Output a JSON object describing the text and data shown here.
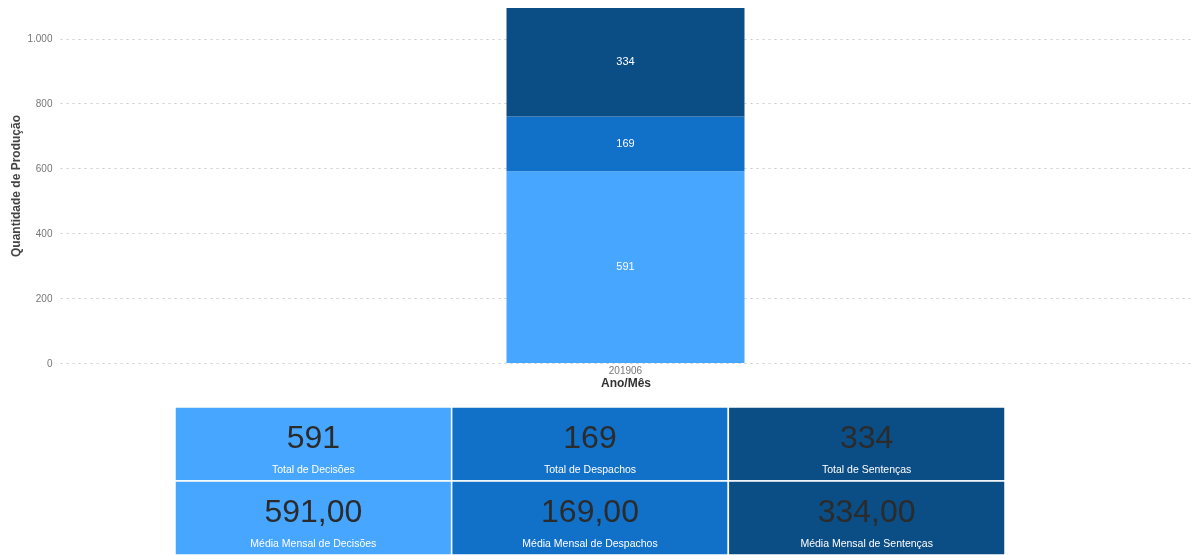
{
  "chart_data": [
    {
      "type": "bar",
      "stacked": true,
      "categories": [
        "201906"
      ],
      "xlabel": "Ano/Mês",
      "ylabel": "Quantidade de Produção",
      "ylim": [
        0,
        1094
      ],
      "yticks": [
        0,
        200,
        400,
        600,
        800,
        {
          "value": 1000,
          "label": "1.000"
        }
      ],
      "grid": "y",
      "data_labels": true,
      "series": [
        {
          "color": "#47a6ff",
          "values": [
            591
          ]
        },
        {
          "color": "#1170c8",
          "values": [
            169
          ]
        },
        {
          "color": "#0b4d85",
          "values": [
            334
          ]
        }
      ]
    },
    {
      "type": "other",
      "colors": [
        "#47a6ff",
        "#1170c8",
        "#0b4d85"
      ],
      "annotations": [
        "591",
        "Total de Decisões",
        "169",
        "Total de Despachos",
        "334",
        "Total de Sentenças",
        "591,00",
        "Média Mensal de Decisões",
        "169,00",
        "Média Mensal de Despachos",
        "334,00",
        "Média Mensal de Sentenças"
      ]
    }
  ]
}
